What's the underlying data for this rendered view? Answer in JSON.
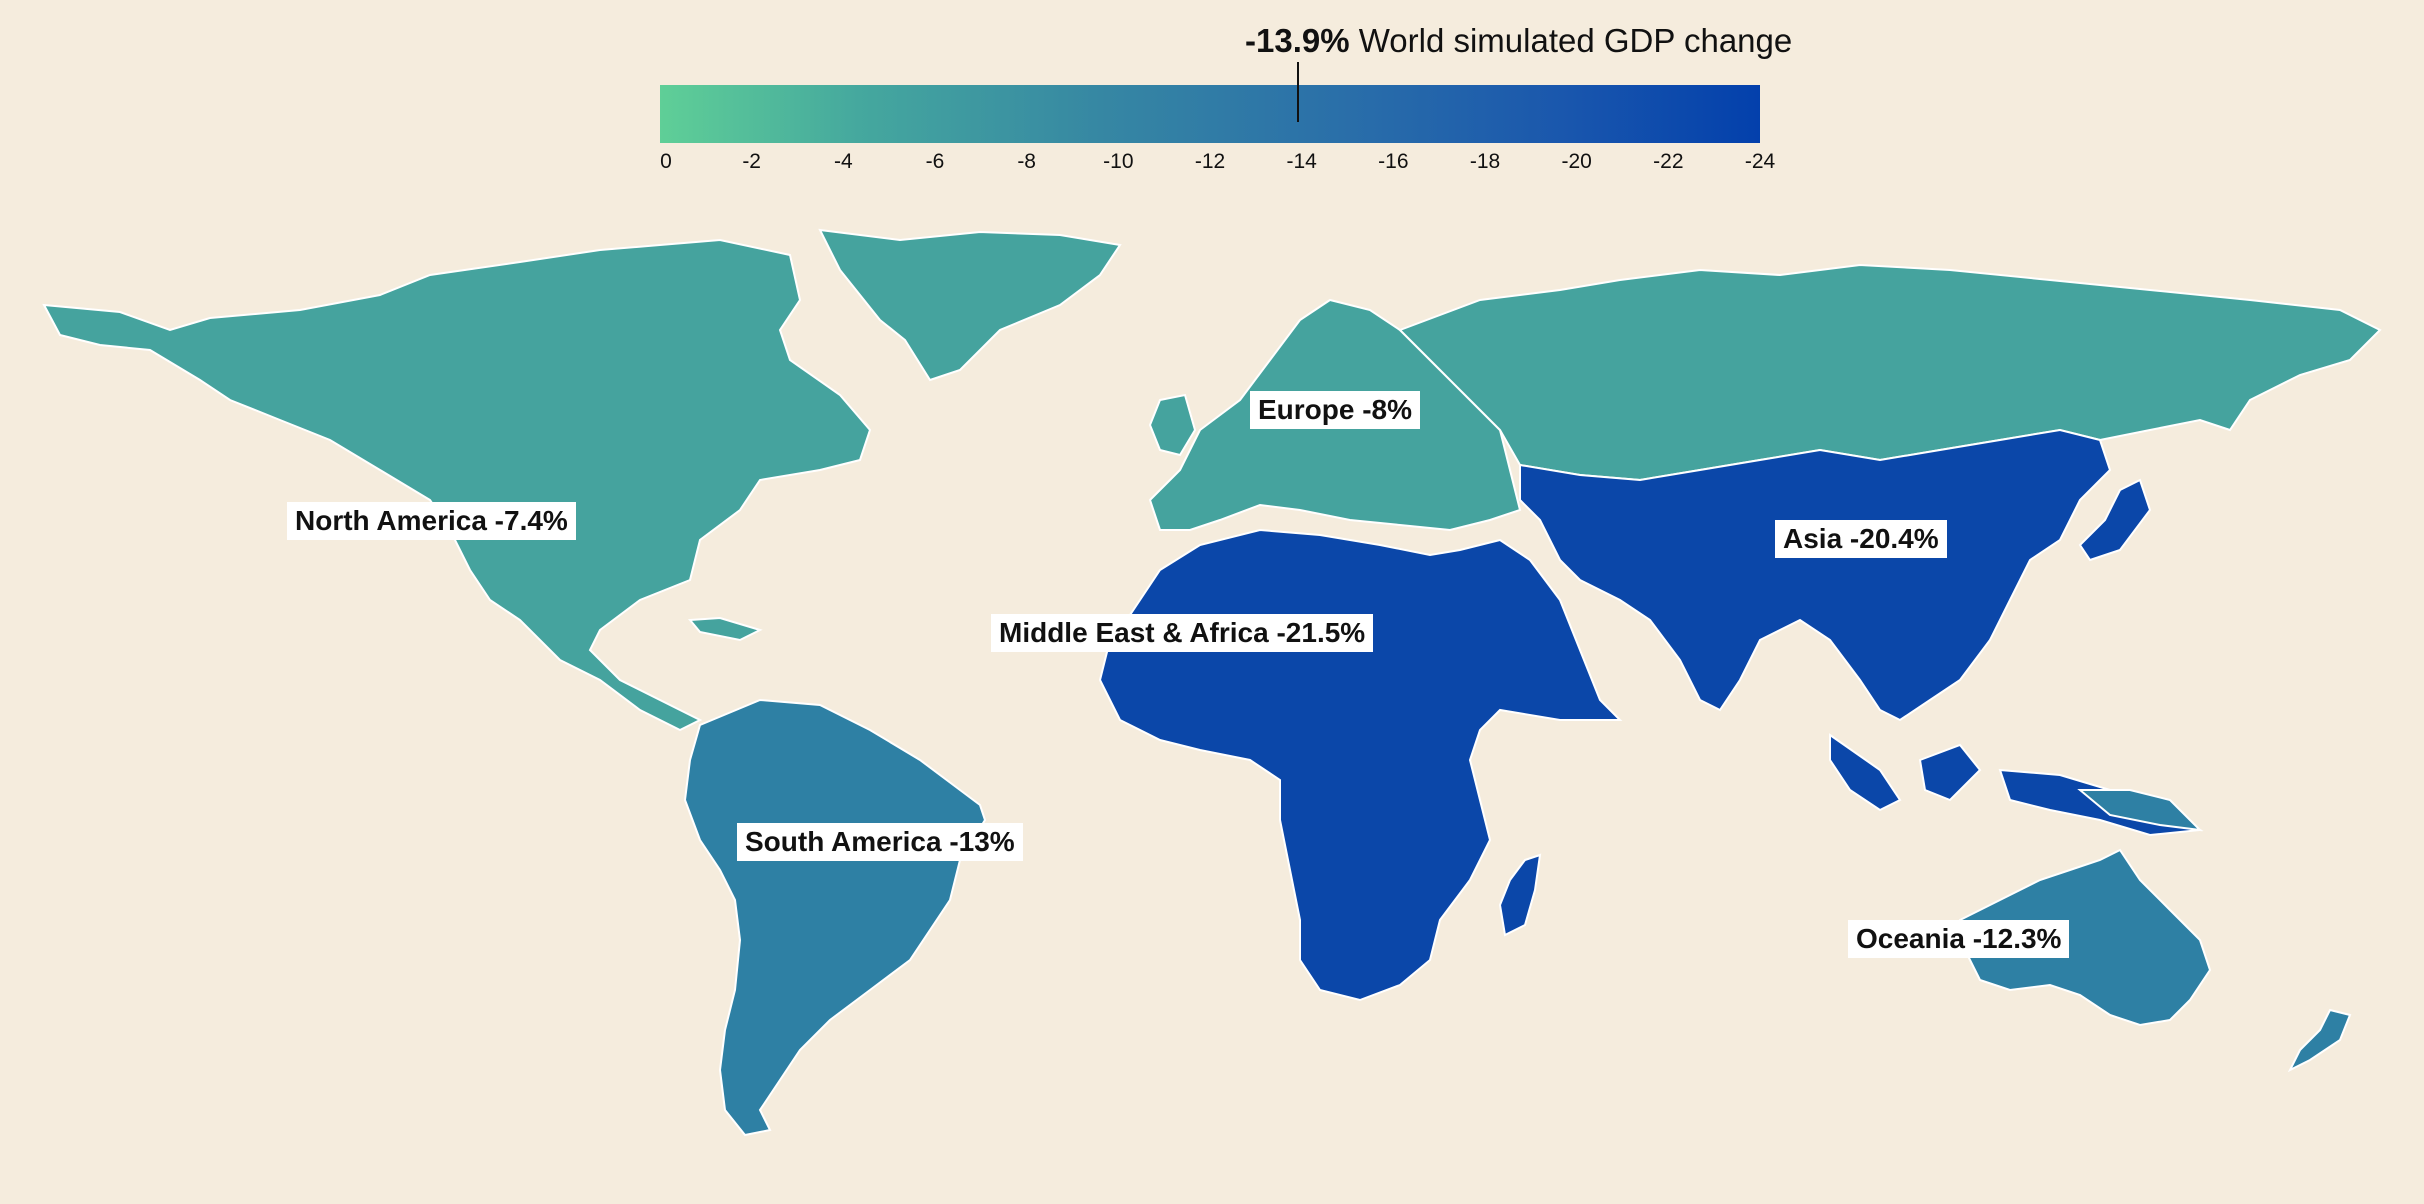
{
  "header": {
    "world_value": "-13.9%",
    "world_label": "World simulated GDP change"
  },
  "legend": {
    "ticks": [
      "0",
      "-2",
      "-4",
      "-6",
      "-8",
      "-10",
      "-12",
      "-14",
      "-16",
      "-18",
      "-20",
      "-22",
      "-24"
    ],
    "range": [
      0,
      -24
    ],
    "marker_value": -13.9
  },
  "regions": [
    {
      "id": "north-america",
      "label": "North America -7.4%",
      "value": -7.4,
      "color": "#45a39e"
    },
    {
      "id": "south-america",
      "label": "South America -13%",
      "value": -13,
      "color": "#2e80a4"
    },
    {
      "id": "europe",
      "label": "Europe -8%",
      "value": -8,
      "color": "#45a39e"
    },
    {
      "id": "middle-east-africa",
      "label": "Middle East & Africa -21.5%",
      "value": -21.5,
      "color": "#0b47a9"
    },
    {
      "id": "asia",
      "label": "Asia -20.4%",
      "value": -20.4,
      "color": "#0b47a9"
    },
    {
      "id": "oceania",
      "label": "Oceania -12.3%",
      "value": -12.3,
      "color": "#2e80a4"
    }
  ],
  "colors": {
    "background": "#f5ecdd",
    "scale_start": "#5fcf97",
    "scale_end": "#0340ac",
    "border": "#ffffff"
  }
}
